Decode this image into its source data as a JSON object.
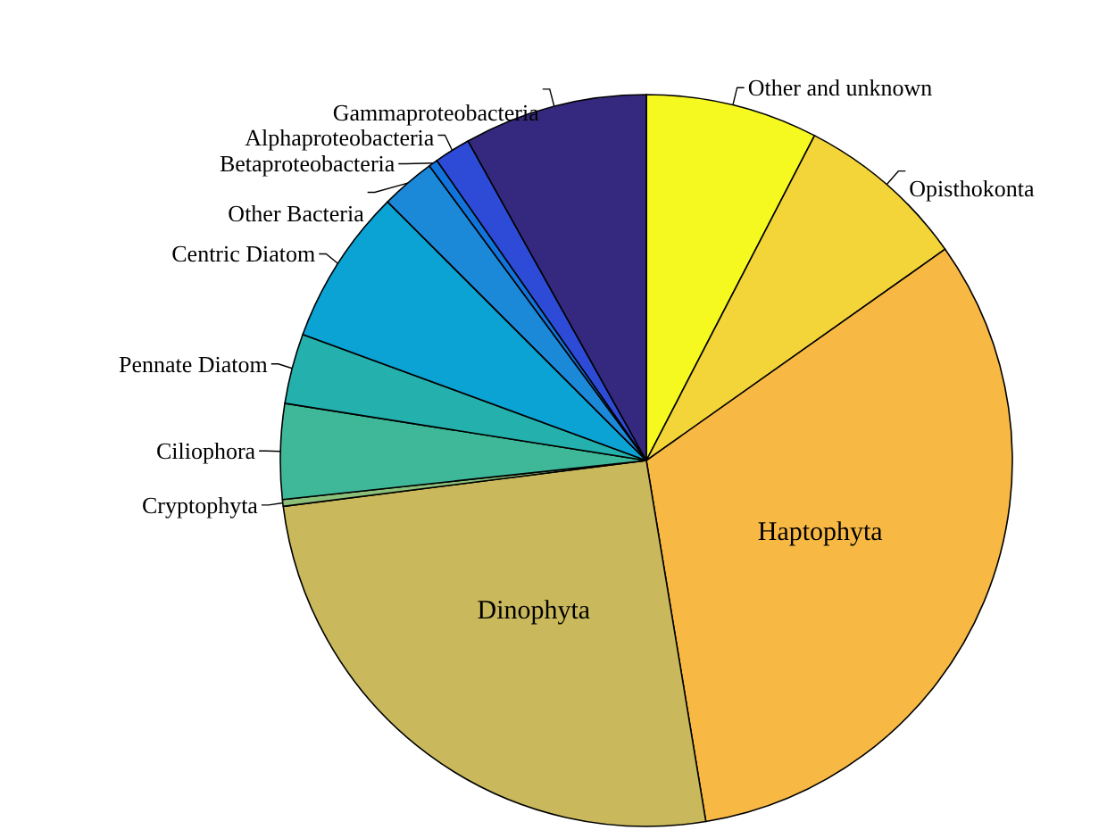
{
  "chart_data": {
    "type": "pie",
    "categories": [
      "Other and unknown",
      "Opisthokonta",
      "Haptophyta",
      "Dinophyta",
      "Cryptophyta",
      "Ciliophora",
      "Pennate Diatom",
      "Centric Diatom",
      "Other Bacteria",
      "Betaproteobacteria",
      "Alphaproteobacteria",
      "Gammaproteobacteria"
    ],
    "values": [
      7.6,
      7.6,
      32.2,
      25.6,
      0.3,
      4.2,
      3.1,
      6.9,
      2.4,
      0.4,
      1.6,
      8.1
    ],
    "colors": [
      "#f5f920",
      "#f3d53a",
      "#f8b944",
      "#c9b95c",
      "#8cc07a",
      "#3fb899",
      "#24b0ad",
      "#0ba2d4",
      "#1b88d8",
      "#1174dd",
      "#2d4bd6",
      "#35297f"
    ],
    "legend": false
  }
}
